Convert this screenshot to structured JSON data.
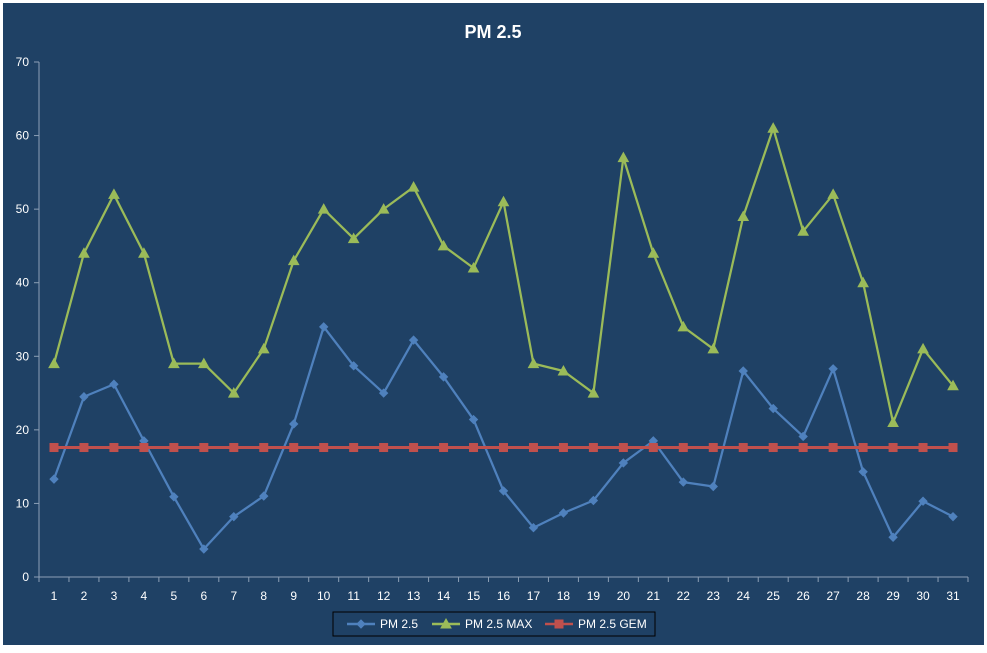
{
  "chart_data": {
    "type": "line",
    "title": "PM 2.5",
    "xlabel": "",
    "ylabel": "",
    "categories": [
      "1",
      "2",
      "3",
      "4",
      "5",
      "6",
      "7",
      "8",
      "9",
      "10",
      "11",
      "12",
      "13",
      "14",
      "15",
      "16",
      "17",
      "18",
      "19",
      "20",
      "21",
      "22",
      "23",
      "24",
      "25",
      "26",
      "27",
      "28",
      "29",
      "30",
      "31"
    ],
    "ylim": [
      0,
      70
    ],
    "yticks": [
      0,
      10,
      20,
      30,
      40,
      50,
      60,
      70
    ],
    "grid": false,
    "legend_position": "bottom",
    "series": [
      {
        "name": "PM 2.5",
        "color": "#4F81BD",
        "marker": "diamond",
        "values": [
          13.3,
          24.5,
          26.2,
          18.5,
          10.9,
          3.8,
          8.2,
          11.0,
          20.8,
          34.0,
          28.7,
          25.0,
          32.2,
          27.2,
          21.4,
          11.7,
          6.7,
          8.7,
          10.4,
          15.5,
          18.5,
          12.9,
          12.3,
          28.0,
          22.9,
          19.1,
          28.3,
          14.3,
          5.4,
          10.3,
          8.2
        ]
      },
      {
        "name": "PM 2.5 MAX",
        "color": "#9BBB59",
        "marker": "triangle",
        "values": [
          29,
          44,
          52,
          44,
          29,
          29,
          25,
          31,
          43,
          50,
          46,
          50,
          53,
          45,
          42,
          51,
          29,
          28,
          25,
          57,
          44,
          34,
          31,
          49,
          61,
          47,
          52,
          40,
          21,
          31,
          26
        ]
      },
      {
        "name": "PM 2.5 GEM",
        "color": "#C0504D",
        "marker": "square",
        "values": [
          17.6,
          17.6,
          17.6,
          17.6,
          17.6,
          17.6,
          17.6,
          17.6,
          17.6,
          17.6,
          17.6,
          17.6,
          17.6,
          17.6,
          17.6,
          17.6,
          17.6,
          17.6,
          17.6,
          17.6,
          17.6,
          17.6,
          17.6,
          17.6,
          17.6,
          17.6,
          17.6,
          17.6,
          17.6,
          17.6,
          17.6
        ]
      }
    ]
  },
  "colors": {
    "background": "#1F4165",
    "axis": "#8DA0B6",
    "text": "#FFFFFF",
    "legend_border": "#000000"
  }
}
